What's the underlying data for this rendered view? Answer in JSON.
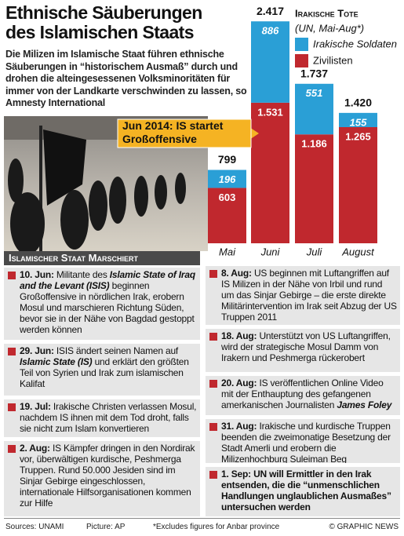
{
  "header": {
    "title": "Ethnische Säuberungen des Islamischen Staats",
    "intro": "Die Milizen im Islamische Staat führen ethnische Säuberungen in “historischem Ausmaß” durch und drohen die alteingesessenen Volksminoritäten für immer von der Landkarte verschwinden zu lassen, so Amnesty International"
  },
  "chart_data": {
    "type": "bar",
    "stacked": true,
    "title": "Irakische Tote",
    "subtitle": "(UN, Mai-Aug*)",
    "categories": [
      "Mai",
      "Juni",
      "Juli",
      "August"
    ],
    "series": [
      {
        "name": "Irakische Soldaten",
        "color": "#2a9fd6",
        "values": [
          196,
          886,
          551,
          155
        ]
      },
      {
        "name": "Zivilisten",
        "color": "#c0282e",
        "values": [
          603,
          1531,
          1186,
          1265
        ],
        "value_labels": [
          "603",
          "1.531",
          "1.186",
          "1.265"
        ]
      }
    ],
    "totals": {
      "values": [
        799,
        2417,
        1737,
        1420
      ],
      "value_labels": [
        "799",
        "2.417",
        "1.737",
        "1.420"
      ]
    },
    "annotation": {
      "text": "Jun 2014: IS startet Großoffensive",
      "category": 1
    }
  },
  "photo": {
    "caption": "Islamischer Staat Marschiert"
  },
  "events": [
    {
      "date": "10. Jun:",
      "text": [
        "Militante des ",
        "Islamic State of Iraq and the Levant (ISIS)",
        " beginnen Großoffensive in nördlichen Irak, erobern Mosul und marschieren Richtung Süden, bevor sie in der Nähe von Bagdad gestoppt werden können"
      ]
    },
    {
      "date": "29. Jun:",
      "text": [
        "ISIS ändert seinen Namen auf ",
        "Islamic State (IS)",
        " und erklärt den größten Teil von Syrien und Irak zum islamischen Kalifat"
      ]
    },
    {
      "date": "19. Jul:",
      "text": [
        "Irakische Christen verlassen Mosul, nachdem IS ihnen mit dem Tod droht, falls sie nicht zum Islam konvertieren"
      ]
    },
    {
      "date": "2. Aug:",
      "text": [
        "IS Kämpfer dringen in den Nordirak vor, überwältigen kurdische, Peshmerga Truppen. Rund 50.000 Jesiden sind im Sinjar Gebirge eingeschlossen, internationale Hilfsorganisationen kommen zur Hilfe"
      ]
    },
    {
      "date": "8. Aug:",
      "text": [
        "US beginnen mit Luftangriffen auf IS Milizen in der Nähe von Irbil und rund um das Sinjar Gebirge – die erste direkte Militärintervention im Irak seit Abzug der US Truppen 2011"
      ]
    },
    {
      "date": "18. Aug:",
      "text": [
        "Unterstützt von US Luftangriffen, wird der strategische Mosul Damm von Irakern und Peshmerga rückerobert"
      ]
    },
    {
      "date": "20. Aug:",
      "text": [
        "IS veröffentlichen Online Video mit der Enthauptung des gefangenen amerkanischen Journalisten ",
        "James Foley"
      ]
    },
    {
      "date": "31. Aug:",
      "text": [
        "Irakische und kurdische Truppen beenden die zweimonatige Besetzung der Stadt Amerli und erobern die Milizenhochburg Suleiman Beg"
      ]
    },
    {
      "date": "1. Sep:",
      "text": [
        "UN will Ermittler in den Irak entsenden, die die “unmenschlichen Handlungen unglaublichen Ausmaßes” untersuchen werden"
      ],
      "bold": true
    }
  ],
  "footer": {
    "sources": "Sources: UNAMI",
    "picture": "Picture: AP",
    "note": "*Excludes figures for Anbar province",
    "credit": "© GRAPHIC NEWS"
  }
}
